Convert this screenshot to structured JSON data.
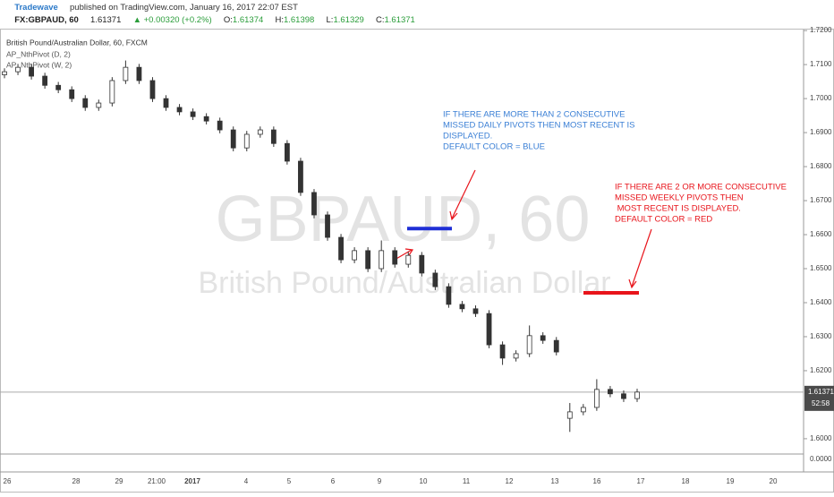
{
  "header": {
    "author": "Tradewave",
    "published": "published on TradingView.com, January 16, 2017 22:07 EST",
    "symbol": "FX:GBPAUD, 60",
    "last": "1.61371",
    "change": "▲ +0.00320 (+0.2%)",
    "ohlc": [
      "O:",
      "1.61374",
      "H:",
      "1.61398",
      "L:",
      "1.61329",
      "C:",
      "1.61371"
    ]
  },
  "chart_data": {
    "type": "candlestick",
    "legend": [
      "British Pound/Australian Dollar, 60, FXCM",
      "AP_NthPivot (D, 2)",
      "AP_NthPivot (W, 2)"
    ],
    "watermark": [
      "GBPAUD, 60",
      "British Pound/Australian Dollar"
    ],
    "up_color": "#ffffff",
    "down_color": "#333333",
    "wick_color": "#333333",
    "open": [
      1.707,
      1.7079,
      1.7092,
      1.7066,
      1.7039,
      1.7026,
      1.7,
      1.6974,
      1.6987,
      1.7053,
      1.7092,
      1.7053,
      1.7,
      1.6974,
      1.6961,
      1.6947,
      1.6934,
      1.6908,
      1.6855,
      1.6895,
      1.6908,
      1.6868,
      1.6816,
      1.6724,
      1.6658,
      1.6592,
      1.6526,
      1.6553,
      1.65,
      1.6553,
      1.6513,
      1.6539,
      1.6487,
      1.6447,
      1.6395,
      1.6382,
      1.6368,
      1.6276,
      1.6237,
      1.625,
      1.6303,
      1.6289,
      1.606,
      1.6079,
      1.6092,
      1.6145,
      1.6132,
      1.6118
    ],
    "high": [
      1.7089,
      1.7102,
      1.7102,
      1.7076,
      1.7049,
      1.7036,
      1.701,
      1.6997,
      1.7063,
      1.7112,
      1.7102,
      1.7063,
      1.701,
      1.6984,
      1.6971,
      1.6957,
      1.6944,
      1.6918,
      1.6905,
      1.6918,
      1.6918,
      1.6878,
      1.6826,
      1.6734,
      1.6668,
      1.6602,
      1.6563,
      1.6563,
      1.6583,
      1.6563,
      1.6549,
      1.6549,
      1.6497,
      1.6457,
      1.6405,
      1.6392,
      1.6378,
      1.6286,
      1.626,
      1.6333,
      1.6313,
      1.6299,
      1.6105,
      1.6102,
      1.6175,
      1.6155,
      1.6142,
      1.6147
    ],
    "low": [
      1.706,
      1.7069,
      1.7056,
      1.7029,
      1.7016,
      1.699,
      1.6964,
      1.6964,
      1.6977,
      1.7043,
      1.7043,
      1.699,
      1.6964,
      1.6951,
      1.6937,
      1.6924,
      1.6898,
      1.6845,
      1.6845,
      1.6885,
      1.6858,
      1.6806,
      1.6714,
      1.6648,
      1.6582,
      1.6516,
      1.6516,
      1.649,
      1.649,
      1.6503,
      1.6503,
      1.6477,
      1.6437,
      1.6385,
      1.6372,
      1.6358,
      1.6266,
      1.6217,
      1.6227,
      1.624,
      1.6279,
      1.6245,
      1.602,
      1.6069,
      1.6082,
      1.6122,
      1.6108,
      1.6108
    ],
    "close": [
      1.7079,
      1.7092,
      1.7066,
      1.7039,
      1.7026,
      1.7,
      1.6974,
      1.6987,
      1.7053,
      1.7092,
      1.7053,
      1.7,
      1.6974,
      1.6961,
      1.6947,
      1.6934,
      1.6908,
      1.6855,
      1.6895,
      1.6908,
      1.6868,
      1.6816,
      1.6724,
      1.6658,
      1.6592,
      1.6526,
      1.6553,
      1.65,
      1.6553,
      1.6513,
      1.6539,
      1.6487,
      1.6447,
      1.6395,
      1.6382,
      1.6368,
      1.6276,
      1.6237,
      1.625,
      1.6303,
      1.6289,
      1.6255,
      1.6079,
      1.6092,
      1.6145,
      1.6132,
      1.6118,
      1.61371
    ],
    "ylim": [
      1.5955,
      1.7203
    ],
    "yticks": [
      {
        "value": 1.72,
        "label": "1.7200"
      },
      {
        "value": 1.71,
        "label": "1.7100"
      },
      {
        "value": 1.7,
        "label": "1.7000"
      },
      {
        "value": 1.69,
        "label": "1.6900"
      },
      {
        "value": 1.68,
        "label": "1.6800"
      },
      {
        "value": 1.67,
        "label": "1.6700"
      },
      {
        "value": 1.66,
        "label": "1.6600"
      },
      {
        "value": 1.65,
        "label": "1.6500"
      },
      {
        "value": 1.64,
        "label": "1.6400"
      },
      {
        "value": 1.63,
        "label": "1.6300"
      },
      {
        "value": 1.62,
        "label": "1.6200"
      },
      {
        "value": 1.6,
        "label": "1.6000"
      }
    ],
    "xticks": [
      "26",
      "28",
      "29",
      "21:00",
      "2017",
      "4",
      "5",
      "6",
      "9",
      "10",
      "11",
      "12",
      "13",
      "16",
      "17",
      "18",
      "19",
      "20"
    ],
    "last_price": 1.61371,
    "countdown": "52:58",
    "indicator_tick": "0.0000",
    "pivots": [
      {
        "value": 1.6618,
        "color": "#1f2fd6"
      },
      {
        "value": 1.6429,
        "color": "#e8141b"
      }
    ],
    "annotations": [
      {
        "color": "#3a7fd5",
        "lines": [
          "IF THERE ARE MORE THAN 2 CONSECUTIVE",
          "MISSED DAILY PIVOTS THEN MOST RECENT IS",
          "DISPLAYED.",
          "DEFAULT COLOR = BLUE"
        ]
      },
      {
        "color": "#e8141b",
        "lines": [
          "IF THERE ARE 2 OR MORE CONSECUTIVE",
          "MISSED WEEKLY PIVOTS THEN",
          " MOST RECENT IS DISPLAYED.",
          "DEFAULT COLOR = RED"
        ]
      }
    ]
  }
}
